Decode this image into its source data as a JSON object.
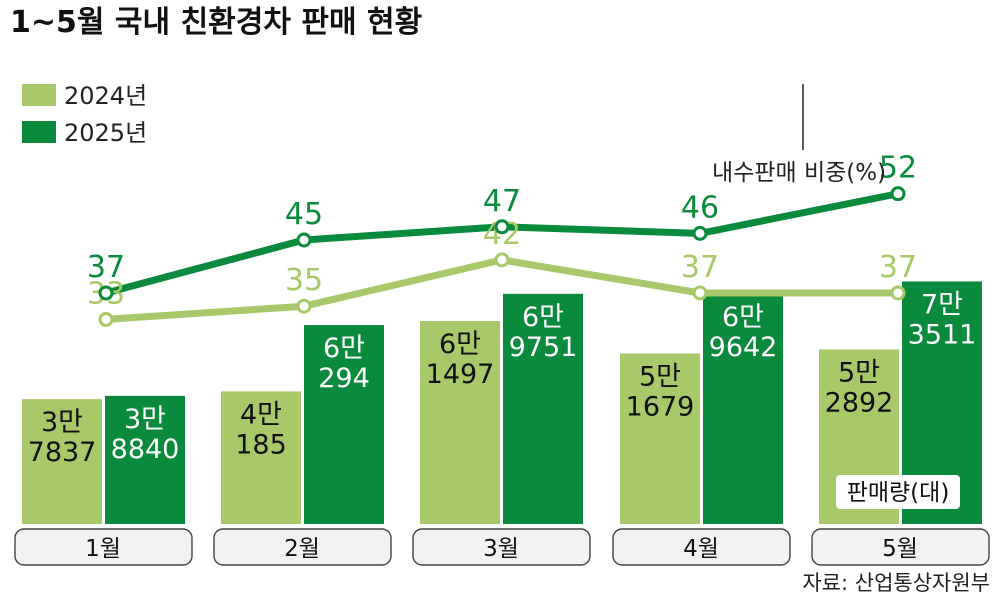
{
  "chart_data": {
    "type": "bar",
    "title": "1~5월 국내 친환경차 판매 현황",
    "categories": [
      "1월",
      "2월",
      "3월",
      "4월",
      "5월"
    ],
    "bar_unit_label": "판매량(대)",
    "series": [
      {
        "name": "2024년",
        "color": "#a8c96a",
        "values": [
          37837,
          40185,
          61497,
          51679,
          52892
        ],
        "labels": [
          [
            "3만",
            "7837"
          ],
          [
            "4만",
            "185"
          ],
          [
            "6만",
            "1497"
          ],
          [
            "5만",
            "1679"
          ],
          [
            "5만",
            "2892"
          ]
        ]
      },
      {
        "name": "2025년",
        "color": "#0a8a3c",
        "values": [
          38840,
          60294,
          69751,
          69642,
          73511
        ],
        "labels": [
          [
            "3만",
            "8840"
          ],
          [
            "6만",
            "294"
          ],
          [
            "6만",
            "9751"
          ],
          [
            "6만",
            "9642"
          ],
          [
            "7만",
            "3511"
          ]
        ]
      }
    ],
    "line_label": "내수판매 비중(%)",
    "line_series": [
      {
        "name": "2024년",
        "color": "#a8c96a",
        "values": [
          33,
          35,
          42,
          37,
          37
        ]
      },
      {
        "name": "2025년",
        "color": "#0a8a3c",
        "values": [
          37,
          45,
          47,
          46,
          52
        ]
      }
    ],
    "source": "자료: 산업통상자원부"
  }
}
